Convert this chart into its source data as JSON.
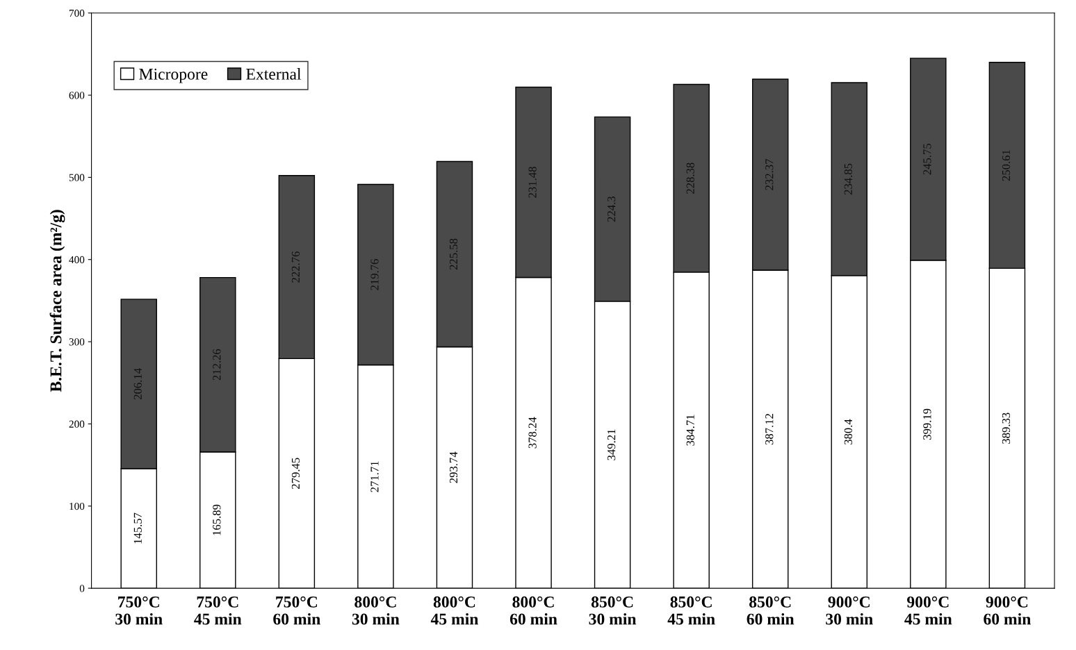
{
  "chart_data": {
    "type": "bar",
    "stacked": true,
    "ylabel": "B.E.T. Surface area (m²/g)",
    "categories": [
      "750°C\n30 min",
      "750°C\n45 min",
      "750°C\n60 min",
      "800°C\n30 min",
      "800°C\n45 min",
      "800°C\n60 min",
      "850°C\n30 min",
      "850°C\n45 min",
      "850°C\n60 min",
      "900°C\n30 min",
      "900°C\n45 min",
      "900°C\n60 min"
    ],
    "series": [
      {
        "name": "Micropore",
        "color": "#ffffff",
        "values": [
          145.57,
          165.89,
          279.45,
          271.71,
          293.74,
          378.24,
          349.21,
          384.71,
          387.12,
          380.4,
          399.19,
          389.33
        ]
      },
      {
        "name": "External",
        "color": "#4a4a4a",
        "values": [
          206.14,
          212.26,
          222.76,
          219.76,
          225.58,
          231.48,
          224.3,
          228.38,
          232.37,
          234.85,
          245.75,
          250.61
        ]
      }
    ],
    "ylim": [
      0,
      700
    ],
    "yticks": [
      0,
      100,
      200,
      300,
      400,
      500,
      600,
      700
    ],
    "data_labels": true,
    "legend": "top left",
    "grid": false
  }
}
